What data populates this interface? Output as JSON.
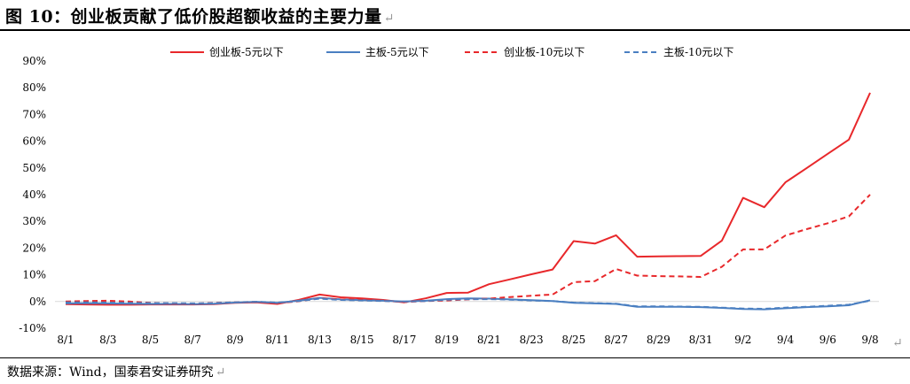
{
  "header": {
    "title": "图 10：创业板贡献了低价股超额收益的主要力量",
    "para_mark": "↵"
  },
  "footer": {
    "source": "数据来源：Wind，国泰君安证券研究",
    "para_mark": "↵",
    "end_mark": "↵"
  },
  "chart_data": {
    "type": "line",
    "title": "",
    "xlabel": "",
    "ylabel": "",
    "ylim": [
      -10,
      90
    ],
    "y_ticks": [
      -10,
      0,
      10,
      20,
      30,
      40,
      50,
      60,
      70,
      80,
      90
    ],
    "y_tick_format": "percent",
    "x_tick_labels": [
      "8/1",
      "8/3",
      "8/5",
      "8/7",
      "8/9",
      "8/11",
      "8/13",
      "8/15",
      "8/17",
      "8/19",
      "8/21",
      "8/23",
      "8/25",
      "8/27",
      "8/29",
      "8/31",
      "9/2",
      "9/4",
      "9/6",
      "9/8"
    ],
    "x": [
      "8/1",
      "8/2",
      "8/3",
      "8/4",
      "8/5",
      "8/6",
      "8/7",
      "8/8",
      "8/9",
      "8/10",
      "8/11",
      "8/12",
      "8/13",
      "8/14",
      "8/15",
      "8/16",
      "8/17",
      "8/18",
      "8/19",
      "8/20",
      "8/21",
      "8/22",
      "8/23",
      "8/24",
      "8/25",
      "8/26",
      "8/27",
      "8/28",
      "8/29",
      "8/30",
      "8/31",
      "9/1",
      "9/2",
      "9/3",
      "9/4",
      "9/5",
      "9/6",
      "9/7",
      "9/8"
    ],
    "grid": false,
    "legend_position": "top",
    "series": [
      {
        "name": "创业板-5元以下",
        "color": "#e8282b",
        "dash": false,
        "values": [
          -1.0,
          -1.1,
          -1.2,
          -1.2,
          -1.1,
          -1.1,
          -1.1,
          -1.0,
          -0.5,
          -0.3,
          -0.9,
          0.6,
          2.6,
          1.6,
          1.2,
          0.6,
          -0.3,
          1.2,
          3.2,
          3.3,
          6.5,
          8.3,
          10.2,
          12.0,
          22.6,
          21.7,
          24.8,
          16.8,
          16.9,
          17.0,
          17.1,
          22.8,
          38.8,
          35.3,
          44.6,
          49.9,
          55.3,
          60.6,
          78.1
        ]
      },
      {
        "name": "主板-5元以下",
        "color": "#4a7fc1",
        "dash": false,
        "values": [
          -0.7,
          -0.6,
          -0.7,
          -0.8,
          -0.9,
          -0.9,
          -1.0,
          -0.8,
          -0.4,
          -0.1,
          -0.5,
          0.3,
          1.4,
          0.8,
          0.5,
          0.3,
          0.0,
          0.3,
          0.9,
          1.2,
          1.1,
          0.8,
          0.5,
          0.2,
          -0.5,
          -0.7,
          -0.9,
          -2.0,
          -2.0,
          -2.0,
          -2.1,
          -2.4,
          -2.8,
          -2.9,
          -2.5,
          -2.1,
          -1.8,
          -1.4,
          0.5
        ]
      },
      {
        "name": "创业板-10元以下",
        "color": "#e8282b",
        "dash": true,
        "values": [
          0.0,
          0.2,
          0.3,
          0.0,
          -0.5,
          -0.7,
          -0.8,
          -0.5,
          -0.3,
          -0.1,
          -0.6,
          0.1,
          1.2,
          0.8,
          0.6,
          0.3,
          -0.2,
          0.2,
          0.4,
          0.8,
          1.1,
          1.7,
          2.2,
          2.6,
          7.3,
          7.6,
          12.2,
          9.7,
          9.5,
          9.4,
          9.2,
          13.0,
          19.5,
          19.5,
          24.7,
          27.1,
          29.3,
          31.9,
          40.0
        ]
      },
      {
        "name": "主板-10元以下",
        "color": "#4a7fc1",
        "dash": true,
        "values": [
          -0.3,
          -0.3,
          -0.4,
          -0.5,
          -0.6,
          -0.6,
          -0.7,
          -0.6,
          -0.3,
          -0.1,
          -0.4,
          0.2,
          1.1,
          0.6,
          0.4,
          0.2,
          0.0,
          0.2,
          0.7,
          0.9,
          0.9,
          0.7,
          0.4,
          0.2,
          -0.4,
          -0.6,
          -0.8,
          -1.8,
          -1.8,
          -1.9,
          -2.0,
          -2.3,
          -2.6,
          -2.7,
          -2.3,
          -2.0,
          -1.6,
          -1.2,
          0.3
        ]
      }
    ]
  }
}
